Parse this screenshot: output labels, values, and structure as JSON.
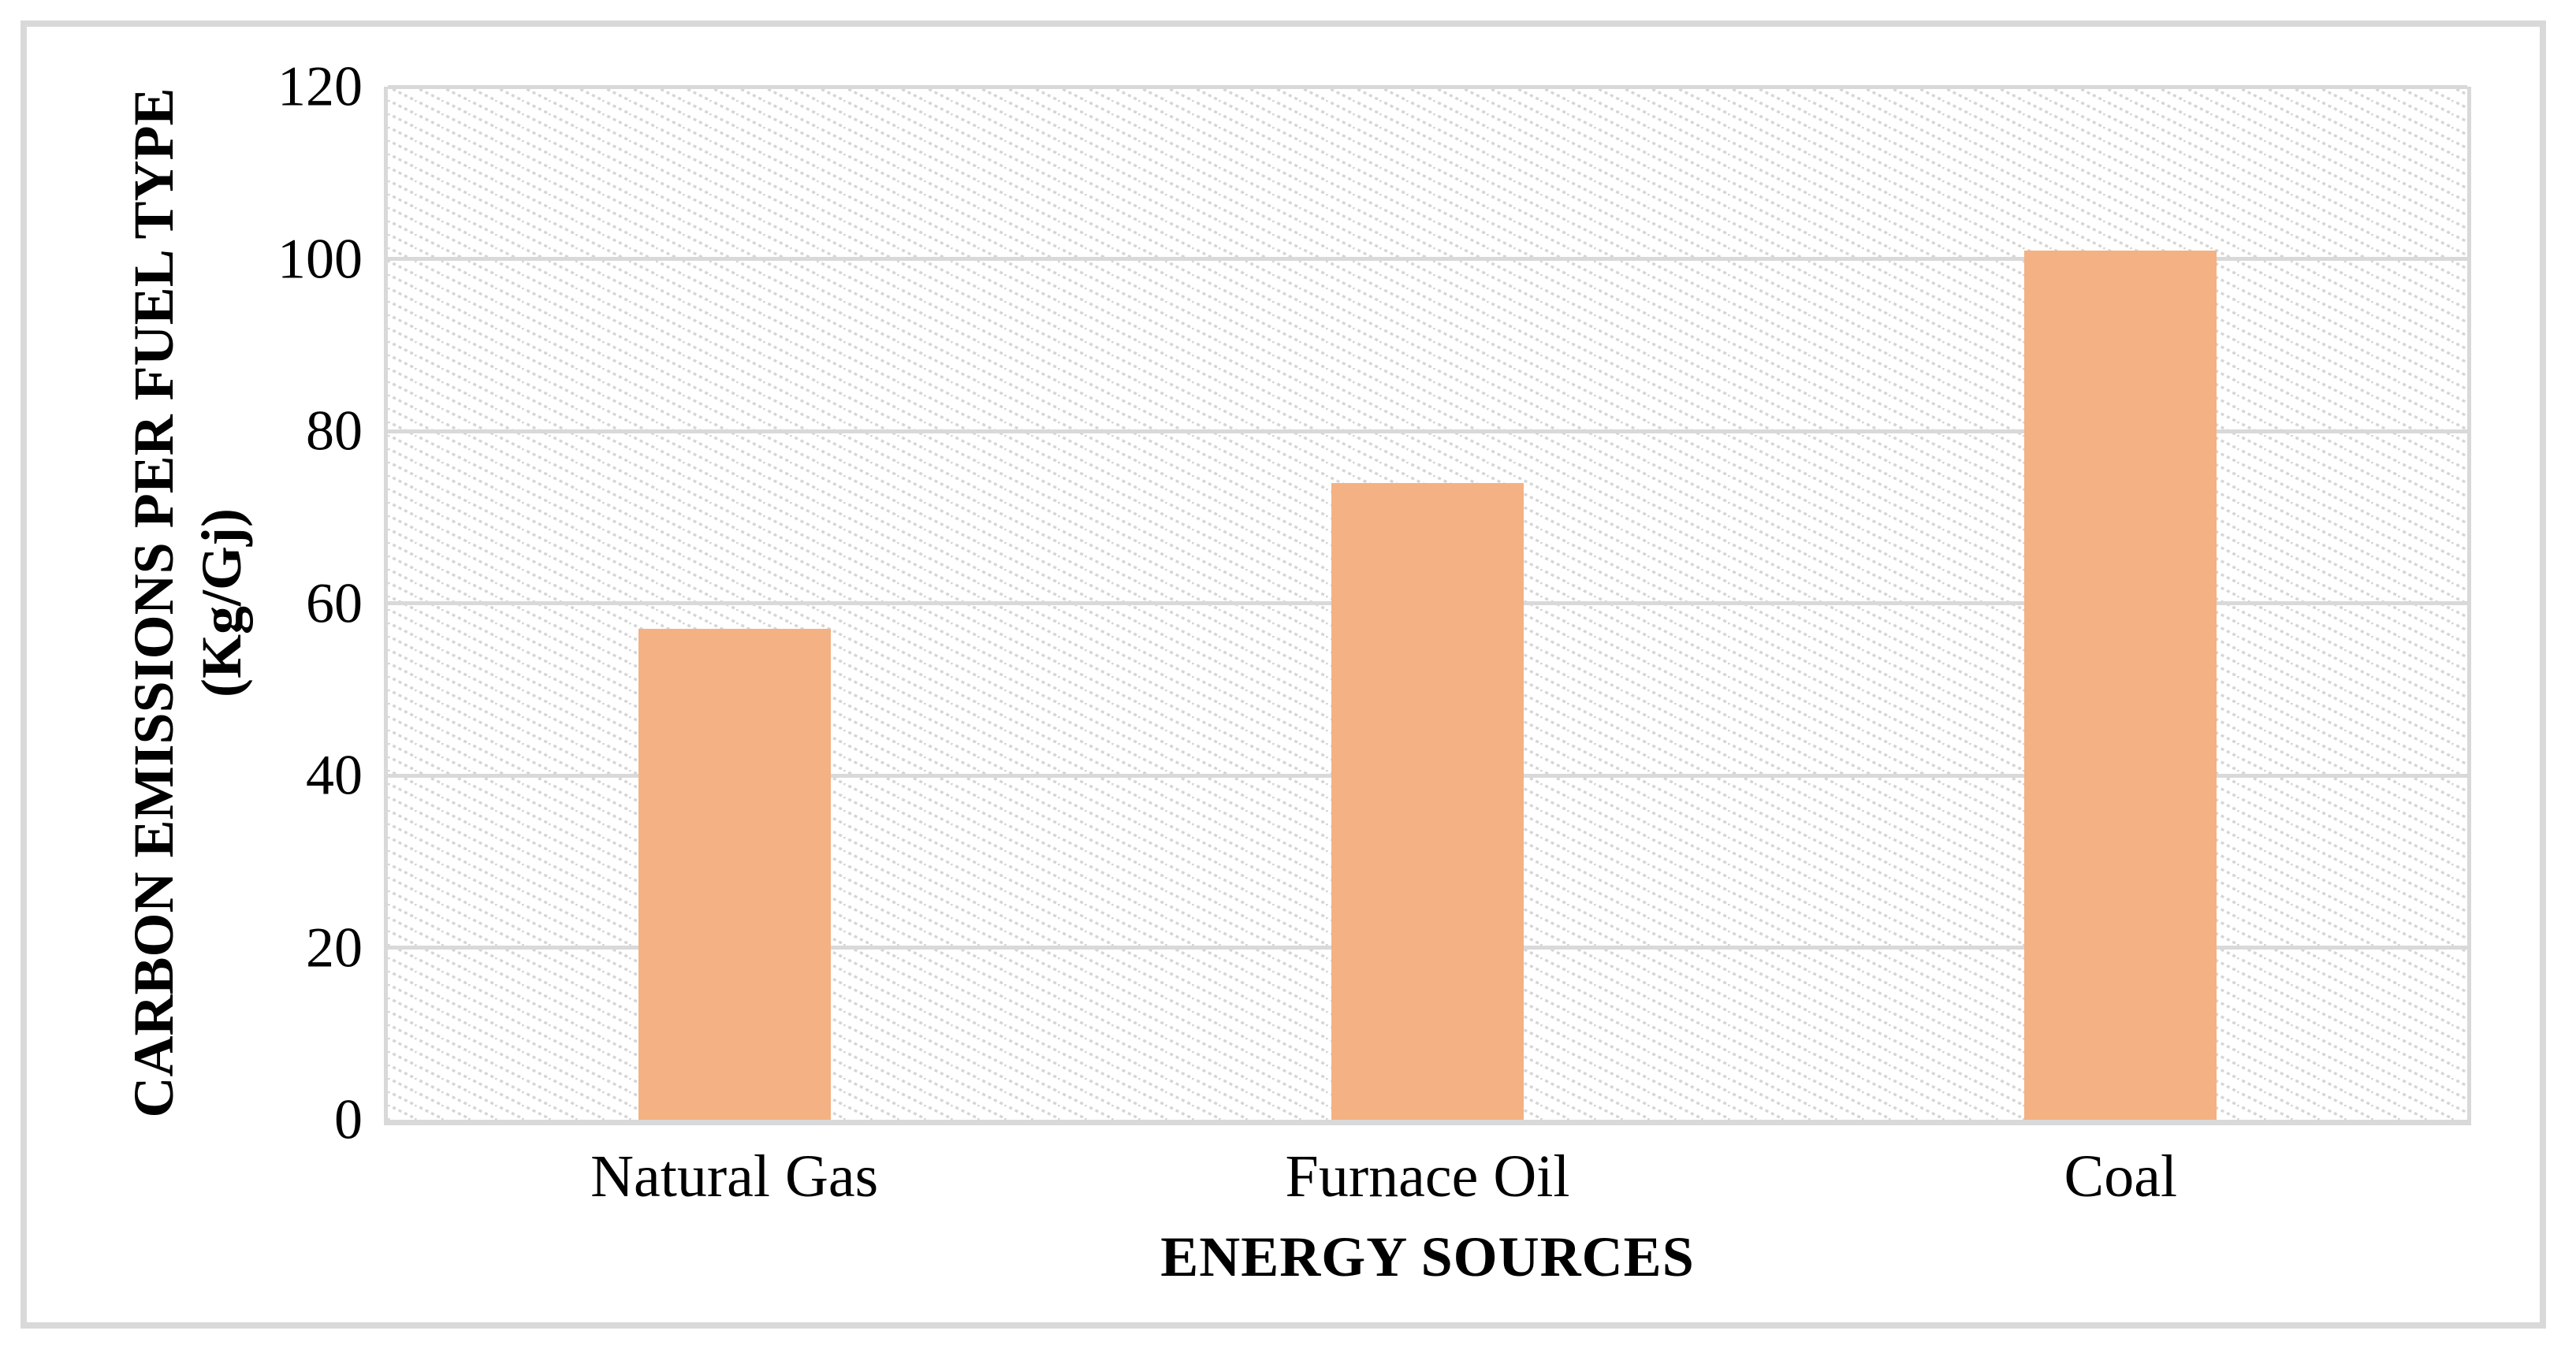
{
  "chart_data": {
    "type": "bar",
    "categories": [
      "Natural Gas",
      "Furnace Oil",
      "Coal"
    ],
    "values": [
      57,
      74,
      101
    ],
    "xlabel": "ENERGY SOURCES",
    "ylabel_line1": "CARBON EMISSIONS PER FUEL TYPE",
    "ylabel_line2": "(Kg/Gj)",
    "ylabel_full": "CARBON EMISSIONS PER FUEL TYPE (Kg/Gj)",
    "ylim": [
      0,
      120
    ],
    "yticks": [
      0,
      20,
      40,
      60,
      80,
      100,
      120
    ],
    "grid": "horizontal",
    "legend_position": "none",
    "bar_color": "#F4B183",
    "gridline_color": "#D9D9D9",
    "plot_background_pattern": "light-downward-diagonal-hatch",
    "hatch_color": "#D5D5D5"
  }
}
